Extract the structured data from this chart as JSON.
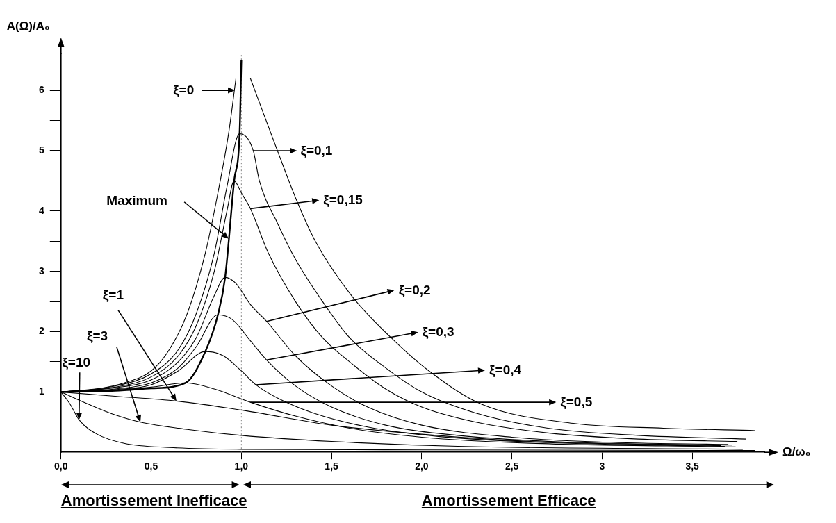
{
  "chart_data": {
    "type": "line",
    "xlabel": "Ω/ω₀",
    "ylabel": "A(Ω)/A₀",
    "xlim": [
      0,
      3.9
    ],
    "ylim": [
      0,
      6.6
    ],
    "xticks": [
      {
        "value": 0,
        "label": "0,0"
      },
      {
        "value": 0.5,
        "label": "0,5"
      },
      {
        "value": 1,
        "label": "1,0"
      },
      {
        "value": 1.5,
        "label": "1,5"
      },
      {
        "value": 2,
        "label": "2,0"
      },
      {
        "value": 2.5,
        "label": "2,5"
      },
      3,
      {
        "value": 3.5,
        "label": "3,5"
      }
    ],
    "yticks": [
      {
        "value": 0.5,
        "label": null
      },
      1,
      {
        "value": 1.5,
        "label": null
      },
      2,
      {
        "value": 2.5,
        "label": null
      },
      3,
      {
        "value": 3.5,
        "label": null
      },
      4,
      {
        "value": 4.5,
        "label": null
      },
      5,
      {
        "value": 5.5,
        "label": null
      },
      6
    ],
    "grid": false,
    "legend": false,
    "marker": "none",
    "line_style": "solid",
    "series": [
      {
        "color": "#000000",
        "x": [
          0,
          0.2,
          0.35,
          0.5,
          0.6,
          0.7,
          0.8,
          0.87,
          0.93,
          0.97
        ],
        "values": [
          1,
          1.05,
          1.15,
          1.35,
          1.7,
          2.3,
          3.3,
          4.3,
          5.3,
          6.2
        ]
      },
      {
        "color": "#000000",
        "x": [
          1.05,
          1.2,
          1.31,
          1.41,
          1.61,
          1.83,
          2.04,
          2.33,
          2.84,
          3.34,
          3.85
        ],
        "values": [
          6.2,
          5.0,
          4.15,
          3.5,
          2.6,
          1.9,
          1.35,
          0.8,
          0.48,
          0.4,
          0.36
        ]
      },
      {
        "color": "#000000",
        "x": [
          0,
          0.3,
          0.5,
          0.65,
          0.75,
          0.85,
          0.92,
          0.99,
          1.066,
          1.1,
          1.2,
          1.3,
          1.45,
          1.6,
          1.8,
          2.0,
          2.3,
          2.7,
          3.2,
          3.8
        ],
        "values": [
          1,
          1.1,
          1.3,
          1.7,
          2.3,
          3.3,
          4.4,
          5.28,
          5.0,
          4.5,
          3.8,
          3.2,
          2.5,
          1.9,
          1.4,
          1.0,
          0.65,
          0.4,
          0.28,
          0.22
        ]
      },
      {
        "color": "#000000",
        "x": [
          0,
          0.3,
          0.5,
          0.65,
          0.75,
          0.85,
          0.92,
          0.96,
          1.0,
          1.05,
          1.15,
          1.3,
          1.45,
          1.6,
          1.8,
          2.0,
          2.3,
          2.7,
          3.2,
          3.75
        ],
        "values": [
          1,
          1.08,
          1.25,
          1.6,
          2.1,
          3.0,
          4.0,
          4.5,
          4.3,
          4.04,
          3.3,
          2.5,
          1.9,
          1.5,
          1.05,
          0.75,
          0.5,
          0.32,
          0.22,
          0.18
        ]
      },
      {
        "color": "#000000",
        "x": [
          0,
          0.3,
          0.5,
          0.65,
          0.75,
          0.85,
          0.91,
          0.97,
          1.05,
          1.14,
          1.3,
          1.5,
          1.7,
          2.0,
          2.5,
          3.0,
          3.7
        ],
        "values": [
          1,
          1.07,
          1.2,
          1.5,
          1.9,
          2.6,
          2.9,
          2.8,
          2.45,
          2.17,
          1.6,
          1.1,
          0.75,
          0.45,
          0.25,
          0.17,
          0.13
        ]
      },
      {
        "color": "#000000",
        "x": [
          0,
          0.3,
          0.5,
          0.65,
          0.75,
          0.87,
          0.95,
          1.05,
          1.14,
          1.3,
          1.5,
          1.8,
          2.2,
          2.8,
          3.72
        ],
        "values": [
          1,
          1.05,
          1.15,
          1.4,
          1.75,
          2.28,
          2.2,
          1.85,
          1.53,
          1.1,
          0.75,
          0.45,
          0.28,
          0.17,
          0.12
        ]
      },
      {
        "color": "#000000",
        "x": [
          0,
          0.3,
          0.5,
          0.65,
          0.8,
          0.9,
          1.0,
          1.08,
          1.2,
          1.4,
          1.7,
          2.1,
          2.7,
          3.68
        ],
        "values": [
          1,
          1.04,
          1.12,
          1.35,
          1.67,
          1.6,
          1.35,
          1.12,
          0.9,
          0.65,
          0.42,
          0.26,
          0.16,
          0.1
        ]
      },
      {
        "color": "#000000",
        "x": [
          0,
          0.3,
          0.5,
          0.69,
          0.85,
          1.05,
          1.3,
          1.6,
          2.0,
          2.6,
          3.74
        ],
        "values": [
          1,
          1.03,
          1.08,
          1.15,
          1.05,
          0.83,
          0.6,
          0.4,
          0.25,
          0.15,
          0.09
        ]
      },
      {
        "color": "#000000",
        "x": [
          0,
          0.3,
          0.64,
          1.0,
          1.5,
          2.0,
          2.6,
          3.66
        ],
        "values": [
          1,
          0.93,
          0.85,
          0.7,
          0.45,
          0.3,
          0.18,
          0.11
        ]
      },
      {
        "color": "#000000",
        "x": [
          0,
          0.15,
          0.3,
          0.44,
          0.7,
          1.0,
          1.5,
          2.2,
          3.78
        ],
        "values": [
          1,
          0.8,
          0.62,
          0.5,
          0.38,
          0.28,
          0.18,
          0.1,
          0.05
        ]
      },
      {
        "color": "#000000",
        "x": [
          0,
          0.05,
          0.1,
          0.2,
          0.35,
          0.6,
          1.0,
          2.0,
          3.85
        ],
        "values": [
          1,
          0.8,
          0.54,
          0.3,
          0.15,
          0.08,
          0.05,
          0.04,
          0.03
        ]
      },
      {
        "color": "#000000",
        "x": [
          0,
          0.3,
          0.5,
          0.69,
          0.8,
          0.87,
          0.91,
          0.96,
          0.99,
          1.0
        ],
        "values": [
          1,
          1.02,
          1.06,
          1.15,
          1.67,
          2.28,
          2.9,
          4.5,
          5.28,
          6.5
        ]
      }
    ],
    "ref_lines": [
      {
        "axis": "x",
        "value": 1,
        "color": "#808080",
        "line_style": "dotted"
      }
    ],
    "annotations": [
      {
        "text": "ξ=1",
        "x": 0.64,
        "y": 0.85
      },
      {
        "text": "ξ=3",
        "x": 0.44,
        "y": 0.5
      },
      {
        "text": "ξ=10",
        "x": 0.1,
        "y": 0.54
      },
      {
        "text": "Maximum",
        "x": 0.93,
        "y": 3.54
      },
      {
        "text": "ξ=0,15",
        "x": 1.05,
        "y": 4.04
      },
      {
        "text": "ξ=0,2",
        "x": 1.14,
        "y": 2.17
      },
      {
        "text": "ξ=0,3",
        "x": 1.14,
        "y": 1.53
      },
      {
        "text": "ξ=0,4",
        "x": 1.08,
        "y": 1.12
      },
      {
        "text": "ξ=0,5",
        "x": 1.05,
        "y": 0.83
      },
      "ξ=0",
      "ξ=0,1",
      "Amortissement Inefficace",
      "Amortissement Efficace"
    ]
  }
}
